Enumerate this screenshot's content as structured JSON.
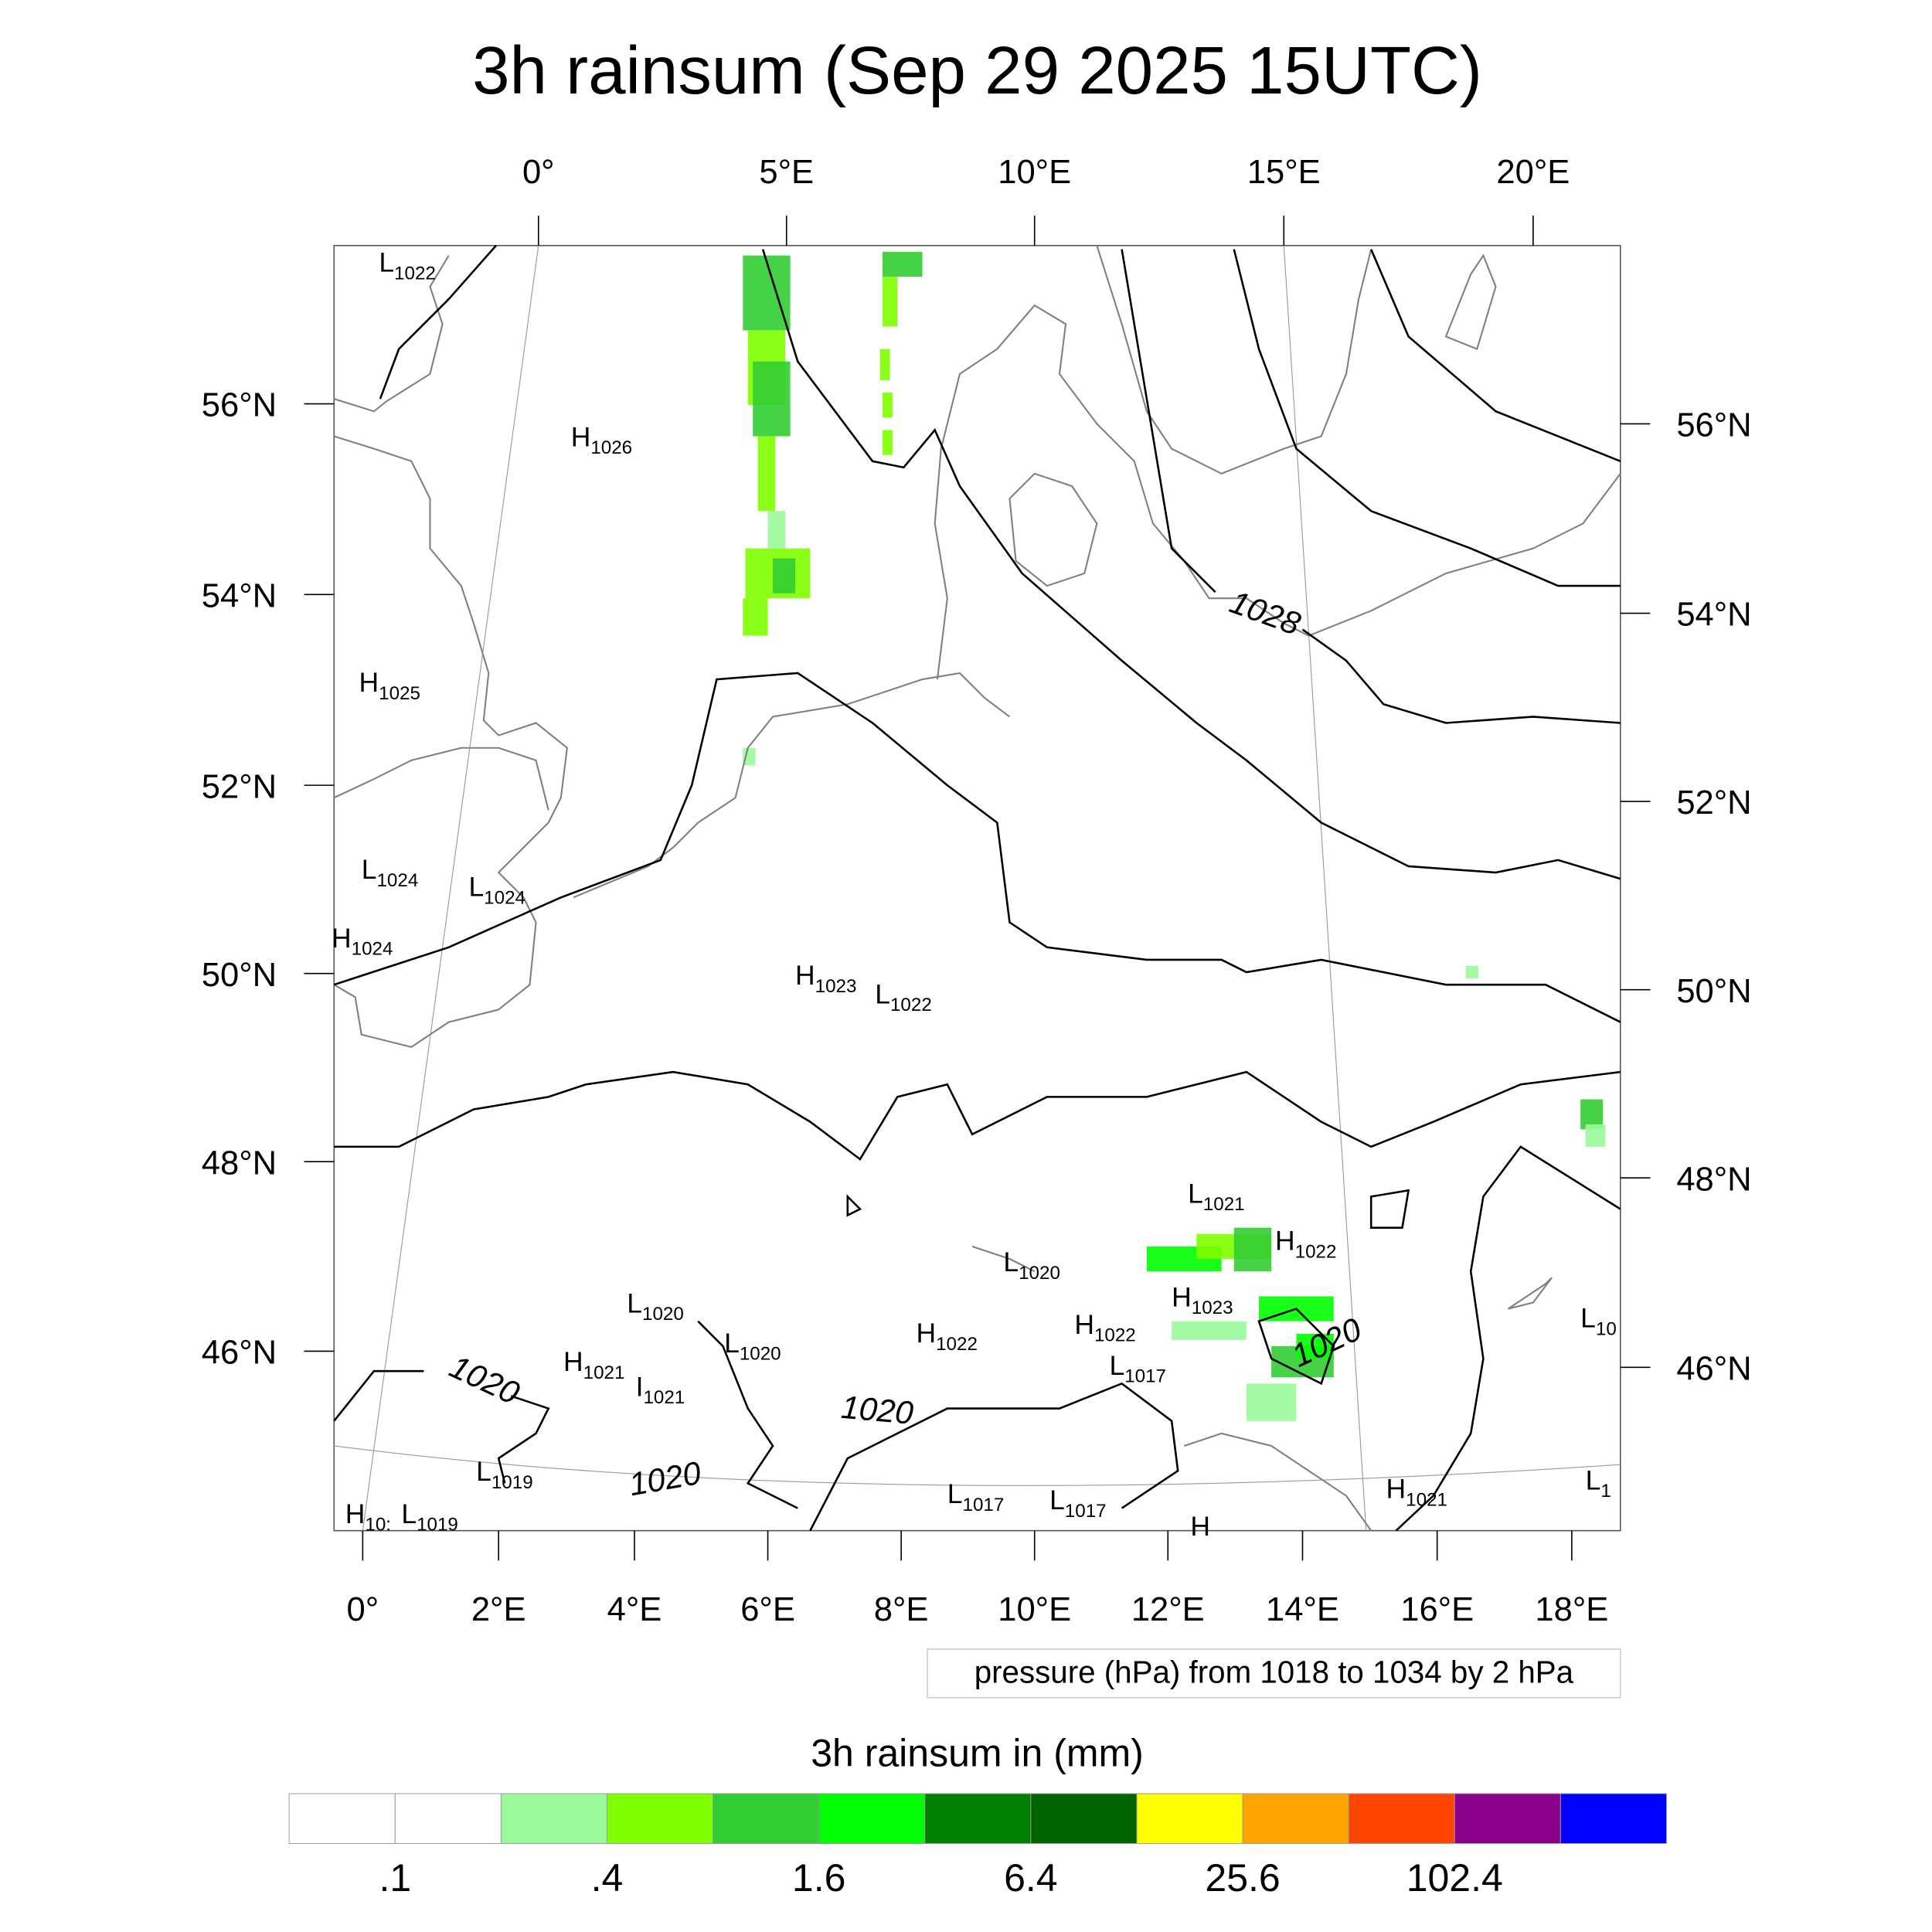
{
  "title": "3h rainsum (Sep 29 2025 15UTC)",
  "chart_data": {
    "type": "heatmap",
    "title": "3h rainsum (Sep 29 2025 15UTC)",
    "top_lon_ticks": [
      "0°",
      "5°E",
      "10°E",
      "15°E",
      "20°E"
    ],
    "bottom_lon_ticks": [
      "0°",
      "2°E",
      "4°E",
      "6°E",
      "8°E",
      "10°E",
      "12°E",
      "14°E",
      "16°E",
      "18°E"
    ],
    "left_lat_ticks": [
      "56°N",
      "54°N",
      "52°N",
      "50°N",
      "48°N",
      "46°N"
    ],
    "right_lat_ticks": [
      "56°N",
      "54°N",
      "52°N",
      "50°N",
      "48°N",
      "46°N"
    ],
    "contour_info": "pressure (hPa) from 1018 to 1034 by 2 hPa",
    "contour_labels": [
      "1028",
      "1020",
      "1020",
      "1020",
      "1020",
      "1020"
    ],
    "pressure_centers": [
      {
        "type": "L",
        "value": "1022"
      },
      {
        "type": "H",
        "value": "1026"
      },
      {
        "type": "H",
        "value": "1025"
      },
      {
        "type": "L",
        "value": "1024"
      },
      {
        "type": "L",
        "value": "1024"
      },
      {
        "type": "H",
        "value": "1024"
      },
      {
        "type": "H",
        "value": "1023"
      },
      {
        "type": "L",
        "value": "1022"
      },
      {
        "type": "L",
        "value": "1021"
      },
      {
        "type": "H",
        "value": "1022"
      },
      {
        "type": "L",
        "value": "1020"
      },
      {
        "type": "H",
        "value": "1023"
      },
      {
        "type": "L",
        "value": "1020"
      },
      {
        "type": "L",
        "value": "1020"
      },
      {
        "type": "H",
        "value": "1022"
      },
      {
        "type": "H",
        "value": "1022"
      },
      {
        "type": "L",
        "value": "1017"
      },
      {
        "type": "H",
        "value": "1021"
      },
      {
        "type": "I",
        "value": "1021"
      },
      {
        "type": "L",
        "value": "1019"
      },
      {
        "type": "H",
        "value": "10:"
      },
      {
        "type": "L",
        "value": "1019"
      },
      {
        "type": "L",
        "value": "1017"
      },
      {
        "type": "L",
        "value": "1017"
      },
      {
        "type": "H",
        "value": "1021"
      },
      {
        "type": "L",
        "value": "10"
      },
      {
        "type": "L",
        "value": "1"
      },
      {
        "type": "H",
        "value": ""
      }
    ],
    "colorbar": {
      "title": "3h rainsum in (mm)",
      "colors": [
        "#ffffff",
        "#ffffff",
        "#9bf99b",
        "#80ff00",
        "#32cd32",
        "#00ff00",
        "#008000",
        "#006400",
        "#ffff00",
        "#ffa500",
        "#ff4500",
        "#8b008b",
        "#0000ff"
      ],
      "labels": [
        ".1",
        ".4",
        "1.6",
        "6.4",
        "25.6",
        "102.4"
      ]
    }
  }
}
